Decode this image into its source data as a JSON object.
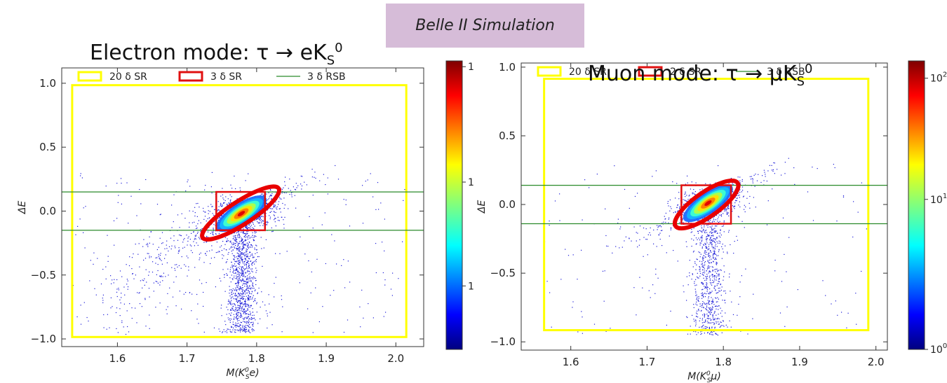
{
  "banner": "Belle II Simulation",
  "chart_data": [
    {
      "type": "scatter",
      "title": "Electron mode: τ → eK",
      "title_sub": "S",
      "title_sup": "0",
      "xlabel": "M(K",
      "xlabel_sup": "0",
      "xlabel_sub": "S",
      "xlabel_tail": "e)",
      "ylabel": "ΔE",
      "xlim": [
        1.52,
        2.04
      ],
      "ylim": [
        -1.06,
        1.12
      ],
      "xticks": [
        1.6,
        1.7,
        1.8,
        1.9,
        2.0
      ],
      "yticks": [
        -1.0,
        -0.5,
        0.0,
        0.5,
        1.0
      ],
      "legend_position": "top",
      "legend": [
        "20 δ SR",
        "3 δ SR",
        "3 δ RSB"
      ],
      "region_20sr": {
        "x": [
          1.535,
          2.015
        ],
        "y": [
          -0.985,
          0.985
        ]
      },
      "region_sr": {
        "x": [
          1.742,
          1.812
        ],
        "y": [
          -0.15,
          0.15
        ]
      },
      "rsb_lines_y": [
        0.15,
        -0.15
      ],
      "ellipse": {
        "cx": 1.777,
        "cy": -0.015,
        "a": 0.042,
        "b": 0.052,
        "angle_deg": 55
      },
      "core": {
        "cx": 1.778,
        "cy": -0.02
      },
      "colorbar": {
        "scale": "linear",
        "tick_labels": [
          "1",
          "1",
          "1"
        ],
        "tick_fracs": [
          0.22,
          0.58,
          0.98
        ]
      }
    },
    {
      "type": "scatter",
      "title": "Muon mode: τ → μK",
      "title_sub": "S",
      "title_sup": "0",
      "xlabel": "M(K",
      "xlabel_sup": "0",
      "xlabel_sub": "S",
      "xlabel_tail": "μ)",
      "ylabel": "ΔE",
      "xlim": [
        1.535,
        2.015
      ],
      "ylim": [
        -1.06,
        1.03
      ],
      "xticks": [
        1.6,
        1.7,
        1.8,
        1.9,
        2.0
      ],
      "yticks": [
        -1.0,
        -0.5,
        0.0,
        0.5,
        1.0
      ],
      "legend_position": "top",
      "legend": [
        "20 δ SR",
        "2 δ SR",
        "3 δ RSB"
      ],
      "region_20sr": {
        "x": [
          1.565,
          1.99
        ],
        "y": [
          -0.915,
          0.915
        ]
      },
      "region_sr": {
        "x": [
          1.745,
          1.81
        ],
        "y": [
          -0.14,
          0.14
        ]
      },
      "rsb_lines_y": [
        0.14,
        -0.14
      ],
      "ellipse": {
        "cx": 1.778,
        "cy": 0.0,
        "a": 0.032,
        "b": 0.05,
        "angle_deg": 57
      },
      "core": {
        "cx": 1.78,
        "cy": 0.01
      },
      "colorbar": {
        "scale": "log",
        "tick_labels": [
          "10",
          "10",
          "10"
        ],
        "tick_exps": [
          "0",
          "1",
          "2"
        ],
        "tick_fracs": [
          0.0,
          0.52,
          0.94
        ]
      }
    }
  ]
}
